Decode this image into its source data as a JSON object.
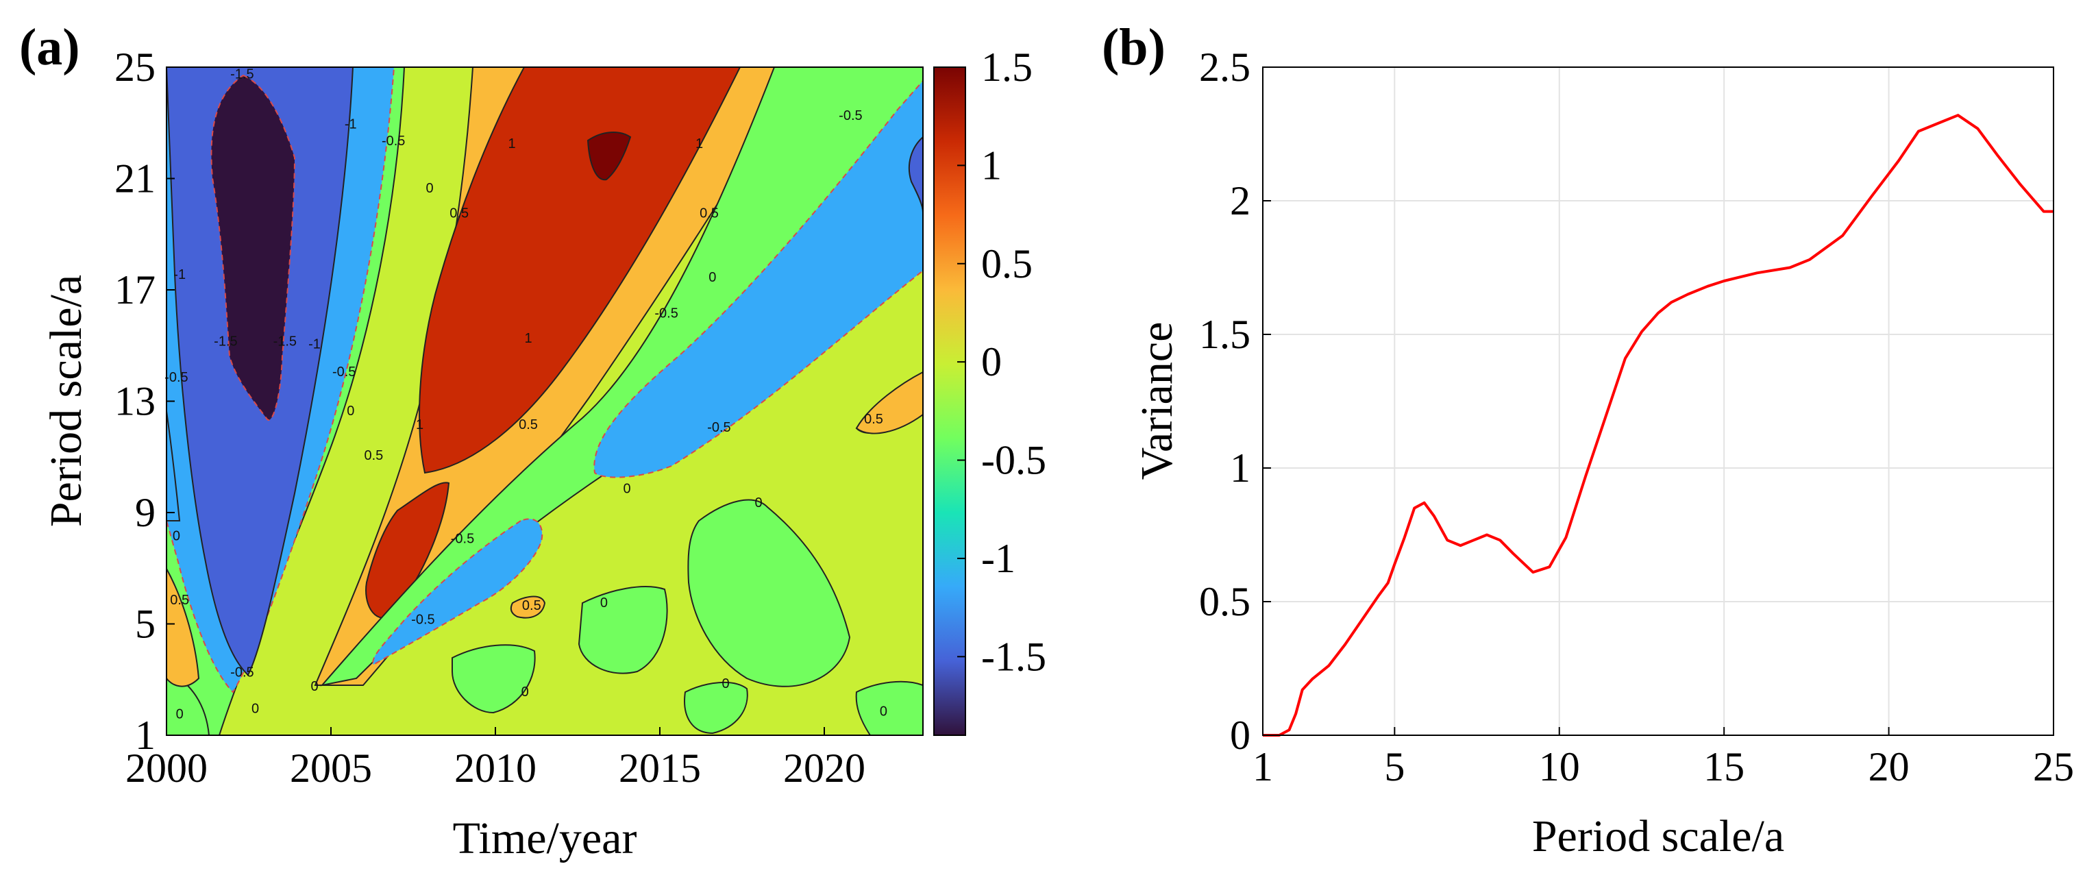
{
  "colors": {
    "line": "#ff0000",
    "contour_line": "#222222",
    "negative_contour": "#d94a4a",
    "grid": "#e3e3e3",
    "colormap": [
      "#30123b",
      "#4662d7",
      "#36aaf9",
      "#1ae4b6",
      "#72fe5e",
      "#c8ef34",
      "#faba39",
      "#f66b19",
      "#ca2a04",
      "#7a0403"
    ]
  },
  "chart_data": [
    {
      "panel_label": "(a)",
      "type": "heatmap",
      "title": "",
      "xlabel": "Time/year",
      "ylabel": "Period scale/a",
      "xlim": [
        2000,
        2023
      ],
      "ylim": [
        1,
        25
      ],
      "x_ticks": [
        "2000",
        "2005",
        "2010",
        "2015",
        "2020"
      ],
      "y_ticks": [
        "1",
        "5",
        "9",
        "13",
        "17",
        "21",
        "25"
      ],
      "colorbar": {
        "range": [
          -1.9,
          1.5
        ],
        "ticks": [
          "1.5",
          "1",
          "0.5",
          "0",
          "-0.5",
          "-1",
          "-1.5"
        ],
        "tick_values": [
          1.5,
          1,
          0.5,
          0,
          -0.5,
          -1,
          -1.5
        ]
      },
      "contour_levels": [
        -1.5,
        -1,
        -0.5,
        0,
        0.5,
        1,
        1.5
      ],
      "contour_labels": [
        {
          "text": "-1.5",
          "x": 2002.3,
          "y": 24.6
        },
        {
          "text": "-1",
          "x": 2005.6,
          "y": 22.8
        },
        {
          "text": "-0.5",
          "x": 2006.9,
          "y": 22.2
        },
        {
          "text": "0",
          "x": 2008.0,
          "y": 20.5
        },
        {
          "text": "0.5",
          "x": 2008.9,
          "y": 19.6
        },
        {
          "text": "1",
          "x": 2010.5,
          "y": 22.1
        },
        {
          "text": "1",
          "x": 2016.2,
          "y": 22.1
        },
        {
          "text": "0.5",
          "x": 2016.5,
          "y": 19.6
        },
        {
          "text": "0",
          "x": 2016.6,
          "y": 17.3
        },
        {
          "text": "-0.5",
          "x": 2020.8,
          "y": 23.1
        },
        {
          "text": "-0.5",
          "x": 2015.2,
          "y": 16.0
        },
        {
          "text": "-0.5",
          "x": 2016.8,
          "y": 11.9
        },
        {
          "text": "1",
          "x": 2011.0,
          "y": 15.1
        },
        {
          "text": "1",
          "x": 2007.7,
          "y": 12.0
        },
        {
          "text": "0.5",
          "x": 2011.0,
          "y": 12.0
        },
        {
          "text": "0.5",
          "x": 2006.3,
          "y": 10.9
        },
        {
          "text": "0",
          "x": 2005.6,
          "y": 12.5
        },
        {
          "text": "-0.5",
          "x": 2005.4,
          "y": 13.9
        },
        {
          "text": "-1",
          "x": 2004.5,
          "y": 14.9
        },
        {
          "text": "-1",
          "x": 2000.4,
          "y": 17.4
        },
        {
          "text": "-0.5",
          "x": 2000.3,
          "y": 13.7
        },
        {
          "text": "-1.5",
          "x": 2001.8,
          "y": 15.0
        },
        {
          "text": "-1.5",
          "x": 2003.6,
          "y": 15.0
        },
        {
          "text": "0",
          "x": 2014.0,
          "y": 9.7
        },
        {
          "text": "0",
          "x": 2018.0,
          "y": 9.2
        },
        {
          "text": "-0.5",
          "x": 2009.0,
          "y": 7.9
        },
        {
          "text": "-0.5",
          "x": 2007.8,
          "y": 5.0
        },
        {
          "text": "0",
          "x": 2013.3,
          "y": 5.6
        },
        {
          "text": "0.5",
          "x": 2011.1,
          "y": 5.5
        },
        {
          "text": "0",
          "x": 2000.3,
          "y": 8.0
        },
        {
          "text": "0.5",
          "x": 2000.4,
          "y": 5.7
        },
        {
          "text": "-0.5",
          "x": 2002.3,
          "y": 3.1
        },
        {
          "text": "0",
          "x": 2004.5,
          "y": 2.6
        },
        {
          "text": "0",
          "x": 2002.7,
          "y": 1.8
        },
        {
          "text": "0",
          "x": 2000.4,
          "y": 1.6
        },
        {
          "text": "0",
          "x": 2010.9,
          "y": 2.4
        },
        {
          "text": "0",
          "x": 2017.0,
          "y": 2.7
        },
        {
          "text": "0",
          "x": 2021.8,
          "y": 1.7
        },
        {
          "text": "0.5",
          "x": 2021.5,
          "y": 12.2
        }
      ]
    },
    {
      "panel_label": "(b)",
      "type": "line",
      "title": "",
      "xlabel": "Period scale/a",
      "ylabel": "Variance",
      "xlim": [
        1,
        25
      ],
      "ylim": [
        0,
        2.5
      ],
      "x_ticks": [
        "1",
        "5",
        "10",
        "15",
        "20",
        "25"
      ],
      "x_tick_values": [
        1,
        5,
        10,
        15,
        20,
        25
      ],
      "y_ticks": [
        "0",
        "0.5",
        "1",
        "1.5",
        "2",
        "2.5"
      ],
      "y_tick_values": [
        0,
        0.5,
        1,
        1.5,
        2,
        2.5
      ],
      "grid": true,
      "x": [
        1,
        1.5,
        1.8,
        2.0,
        2.2,
        2.5,
        3.0,
        3.5,
        4.0,
        4.5,
        4.8,
        5.0,
        5.3,
        5.6,
        5.9,
        6.2,
        6.6,
        7.0,
        7.4,
        7.8,
        8.2,
        8.6,
        9.2,
        9.7,
        10.2,
        10.8,
        11.4,
        12.0,
        12.5,
        13.0,
        13.4,
        13.9,
        14.5,
        15.0,
        16.0,
        17.0,
        17.6,
        18.6,
        19.5,
        20.3,
        20.9,
        21.5,
        22.1,
        22.7,
        23.3,
        24.0,
        24.7,
        25.0
      ],
      "values": [
        0,
        0,
        0.02,
        0.08,
        0.17,
        0.21,
        0.26,
        0.34,
        0.43,
        0.52,
        0.57,
        0.64,
        0.74,
        0.85,
        0.87,
        0.82,
        0.73,
        0.71,
        0.73,
        0.75,
        0.73,
        0.68,
        0.61,
        0.63,
        0.74,
        0.97,
        1.19,
        1.41,
        1.51,
        1.58,
        1.62,
        1.65,
        1.68,
        1.7,
        1.73,
        1.75,
        1.78,
        1.87,
        2.02,
        2.15,
        2.26,
        2.29,
        2.32,
        2.27,
        2.17,
        2.06,
        1.96,
        1.96
      ]
    }
  ]
}
